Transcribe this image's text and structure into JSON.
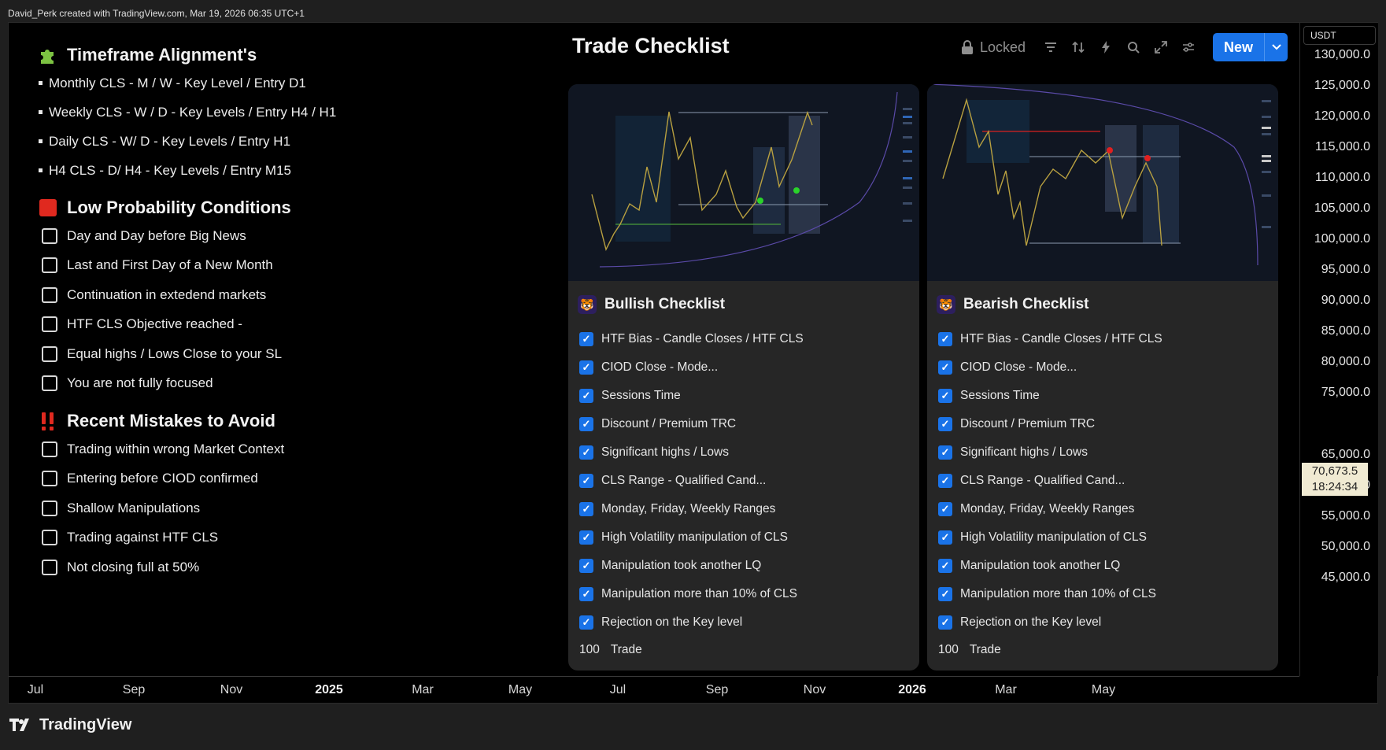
{
  "attribution": "David_Perk created with TradingView.com, Mar 19, 2026 06:35 UTC+1",
  "left": {
    "timeframe": {
      "title": "Timeframe  Alignment's",
      "icon": "puzzle-icon",
      "items": [
        "Monthly CLS - M / W -  Key Level / Entry D1",
        "Weekly CLS  -  W / D - Key Levels /   Entry H4 / H1",
        "Daily CLS - W/ D - Key Levels / Entry H1",
        "H4 CLS -  D/ H4 - Key Levels / Entry M15"
      ]
    },
    "low_prob": {
      "title": "Low Probability Conditions",
      "icon": "red-square-icon",
      "items": [
        "Day and Day before Big News",
        "Last and  First Day of a New Month",
        "Continuation in extedend markets",
        "HTF CLS Objective reached -",
        "Equal highs / Lows Close to your SL",
        "You are not fully focused"
      ]
    },
    "mistakes": {
      "title": "Recent Mistakes to Avoid",
      "icon": "double-exclamation-icon",
      "items": [
        "Trading within wrong Market Context",
        "Entering before CIOD confirmed",
        "Shallow Manipulations",
        "Trading against HTF CLS",
        "Not closing full at 50%"
      ]
    }
  },
  "center": {
    "title": "Trade Checklist",
    "locked_label": "Locked",
    "new_label": "New"
  },
  "cards": [
    {
      "title": "Bullish Checklist",
      "items": [
        "HTF Bias - Candle Closes / HTF CLS",
        "CIOD Close - Mode...",
        "Sessions Time",
        "Discount / Premium TRC",
        "Significant highs / Lows",
        "CLS Range - Qualified Cand...",
        "Monday, Friday, Weekly Ranges",
        "High Volatility manipulation of CLS",
        "Manipulation took another LQ",
        "Manipulation more than 10% of CLS",
        "Rejection on the Key level"
      ],
      "count": "100",
      "count_label": "Trade"
    },
    {
      "title": "Bearish Checklist",
      "items": [
        "HTF Bias - Candle Closes / HTF CLS",
        "CIOD Close - Mode...",
        "Sessions Time",
        "Discount / Premium TRC",
        "Significant highs / Lows",
        "CLS Range - Qualified Cand...",
        "Monday, Friday, Weekly Ranges",
        "High Volatility manipulation of CLS",
        "Manipulation took another LQ",
        "Manipulation more than 10% of CLS",
        "Rejection on the Key level"
      ],
      "count": "100",
      "count_label": "Trade"
    }
  ],
  "price_axis": {
    "currency": "USDT",
    "ticks": [
      "130,000.0",
      "125,000.0",
      "120,000.0",
      "115,000.0",
      "110,000.0",
      "105,000.0",
      "100,000.0",
      "95,000.0",
      "90,000.0",
      "85,000.0",
      "80,000.0",
      "75,000.0",
      "65,000.0",
      "60,000.0",
      "55,000.0",
      "50,000.0",
      "45,000.0"
    ],
    "current_price": "70,673.5",
    "countdown": "18:24:34"
  },
  "time_axis": {
    "labels": [
      "Jul",
      "Sep",
      "Nov",
      "2025",
      "Mar",
      "May",
      "Jul",
      "Sep",
      "Nov",
      "2026",
      "Mar",
      "May"
    ],
    "bold": [
      "2025",
      "2026"
    ]
  },
  "brand": "TradingView",
  "colors": {
    "accent": "#1a73e8",
    "background": "#000000",
    "card": "#262626",
    "price_tag": "#f0ead2"
  }
}
